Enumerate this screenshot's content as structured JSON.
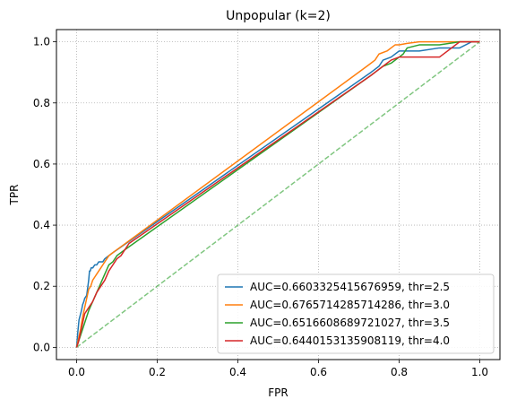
{
  "chart_data": {
    "type": "line",
    "title": "Unpopular (k=2)",
    "xlabel": "FPR",
    "ylabel": "TPR",
    "xlim": [
      -0.05,
      1.05
    ],
    "ylim": [
      -0.04,
      1.04
    ],
    "xticks": [
      0.0,
      0.2,
      0.4,
      0.6,
      0.8,
      1.0
    ],
    "yticks": [
      0.0,
      0.2,
      0.4,
      0.6,
      0.8,
      1.0
    ],
    "xtick_labels": [
      "0.0",
      "0.2",
      "0.4",
      "0.6",
      "0.8",
      "1.0"
    ],
    "ytick_labels": [
      "0.0",
      "0.2",
      "0.4",
      "0.6",
      "0.8",
      "1.0"
    ],
    "grid": true,
    "legend_position": "lower-right",
    "series": [
      {
        "name": "AUC=0.6603325415676959, thr=2.5",
        "color": "#1f77b4",
        "x": [
          0.0,
          0.003,
          0.006,
          0.008,
          0.012,
          0.015,
          0.018,
          0.02,
          0.025,
          0.028,
          0.03,
          0.032,
          0.034,
          0.036,
          0.04,
          0.045,
          0.05,
          0.055,
          0.06,
          0.065,
          0.07,
          0.08,
          0.09,
          0.73,
          0.74,
          0.75,
          0.76,
          0.78,
          0.8,
          0.85,
          0.9,
          0.95,
          0.98,
          1.0
        ],
        "y": [
          0.0,
          0.05,
          0.09,
          0.1,
          0.12,
          0.14,
          0.15,
          0.16,
          0.17,
          0.2,
          0.22,
          0.25,
          0.25,
          0.26,
          0.26,
          0.27,
          0.27,
          0.28,
          0.28,
          0.28,
          0.29,
          0.3,
          0.31,
          0.9,
          0.91,
          0.92,
          0.94,
          0.95,
          0.97,
          0.97,
          0.98,
          0.98,
          1.0,
          1.0
        ]
      },
      {
        "name": "AUC=0.6765714285714286, thr=3.0",
        "color": "#ff7f0e",
        "x": [
          0.0,
          0.005,
          0.01,
          0.015,
          0.02,
          0.025,
          0.03,
          0.035,
          0.04,
          0.045,
          0.05,
          0.055,
          0.06,
          0.065,
          0.07,
          0.075,
          0.08,
          0.09,
          0.72,
          0.73,
          0.74,
          0.75,
          0.77,
          0.78,
          0.79,
          0.8,
          0.82,
          0.85,
          0.9,
          0.95,
          1.0
        ],
        "y": [
          0.0,
          0.03,
          0.06,
          0.1,
          0.13,
          0.16,
          0.19,
          0.2,
          0.22,
          0.23,
          0.24,
          0.25,
          0.26,
          0.27,
          0.28,
          0.29,
          0.3,
          0.31,
          0.92,
          0.93,
          0.94,
          0.96,
          0.97,
          0.98,
          0.99,
          0.99,
          0.995,
          1.0,
          1.0,
          1.0,
          1.0
        ]
      },
      {
        "name": "AUC=0.6516608689721027, thr=3.5",
        "color": "#2ca02c",
        "x": [
          0.0,
          0.01,
          0.02,
          0.03,
          0.04,
          0.05,
          0.06,
          0.07,
          0.08,
          0.09,
          0.1,
          0.12,
          0.73,
          0.74,
          0.76,
          0.78,
          0.8,
          0.81,
          0.82,
          0.85,
          0.9,
          0.95,
          1.0
        ],
        "y": [
          0.0,
          0.04,
          0.08,
          0.12,
          0.15,
          0.18,
          0.21,
          0.24,
          0.27,
          0.28,
          0.3,
          0.32,
          0.89,
          0.9,
          0.92,
          0.93,
          0.95,
          0.96,
          0.98,
          0.99,
          0.99,
          1.0,
          1.0
        ]
      },
      {
        "name": "AUC=0.6440153135908119, thr=4.0",
        "color": "#d62728",
        "x": [
          0.0,
          0.005,
          0.01,
          0.015,
          0.02,
          0.03,
          0.04,
          0.05,
          0.06,
          0.07,
          0.08,
          0.09,
          0.1,
          0.11,
          0.12,
          0.13,
          0.73,
          0.74,
          0.76,
          0.78,
          0.8,
          0.82,
          0.85,
          0.9,
          0.95,
          0.98,
          1.0
        ],
        "y": [
          0.0,
          0.02,
          0.05,
          0.08,
          0.11,
          0.13,
          0.15,
          0.18,
          0.2,
          0.22,
          0.25,
          0.27,
          0.29,
          0.3,
          0.32,
          0.34,
          0.89,
          0.9,
          0.92,
          0.94,
          0.95,
          0.95,
          0.95,
          0.95,
          1.0,
          1.0,
          1.0
        ]
      },
      {
        "color": "#2ca02c",
        "dashed": true,
        "opacity": 0.6,
        "x": [
          0.0,
          1.0
        ],
        "y": [
          0.0,
          1.0
        ]
      }
    ]
  }
}
